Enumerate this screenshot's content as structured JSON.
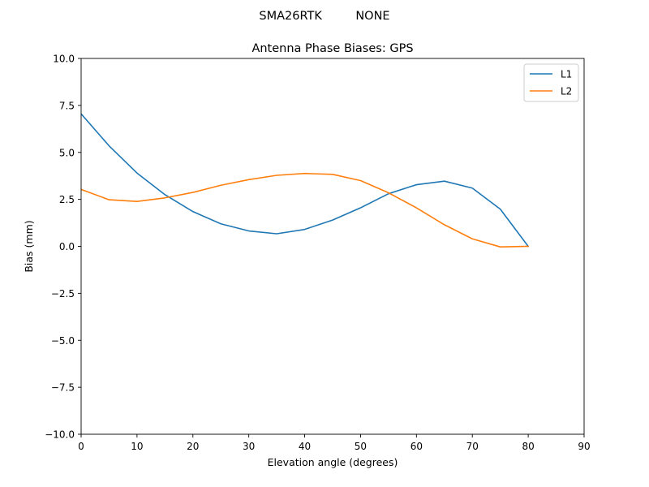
{
  "figure": {
    "suptitle": "SMA26RTK         NONE"
  },
  "chart_data": {
    "type": "line",
    "title": "Antenna Phase Biases: GPS",
    "xlabel": "Elevation angle (degrees)",
    "ylabel": "Bias (mm)",
    "xlim": [
      0,
      90
    ],
    "ylim": [
      -10,
      10
    ],
    "xticks": [
      0,
      10,
      20,
      30,
      40,
      50,
      60,
      70,
      80,
      90
    ],
    "xtick_labels": [
      "0",
      "10",
      "20",
      "30",
      "40",
      "50",
      "60",
      "70",
      "80",
      "90"
    ],
    "yticks": [
      -10,
      -7.5,
      -5,
      -2.5,
      0,
      2.5,
      5,
      7.5,
      10
    ],
    "ytick_labels": [
      "−10.0",
      "−7.5",
      "−5.0",
      "−2.5",
      "0.0",
      "2.5",
      "5.0",
      "7.5",
      "10.0"
    ],
    "grid": false,
    "legend_position": "top-right",
    "x": [
      0,
      5,
      10,
      15,
      20,
      25,
      30,
      35,
      40,
      45,
      50,
      55,
      60,
      65,
      70,
      75,
      80
    ],
    "series": [
      {
        "name": "L1",
        "color": "#1f77b4",
        "values": [
          7.05,
          5.35,
          3.9,
          2.75,
          1.85,
          1.2,
          0.82,
          0.67,
          0.9,
          1.4,
          2.05,
          2.8,
          3.28,
          3.47,
          3.1,
          1.98,
          0.0
        ]
      },
      {
        "name": "L2",
        "color": "#ff7f0e",
        "values": [
          3.03,
          2.48,
          2.39,
          2.58,
          2.87,
          3.25,
          3.55,
          3.78,
          3.88,
          3.83,
          3.5,
          2.85,
          2.05,
          1.15,
          0.4,
          -0.03,
          0.0
        ]
      }
    ]
  }
}
